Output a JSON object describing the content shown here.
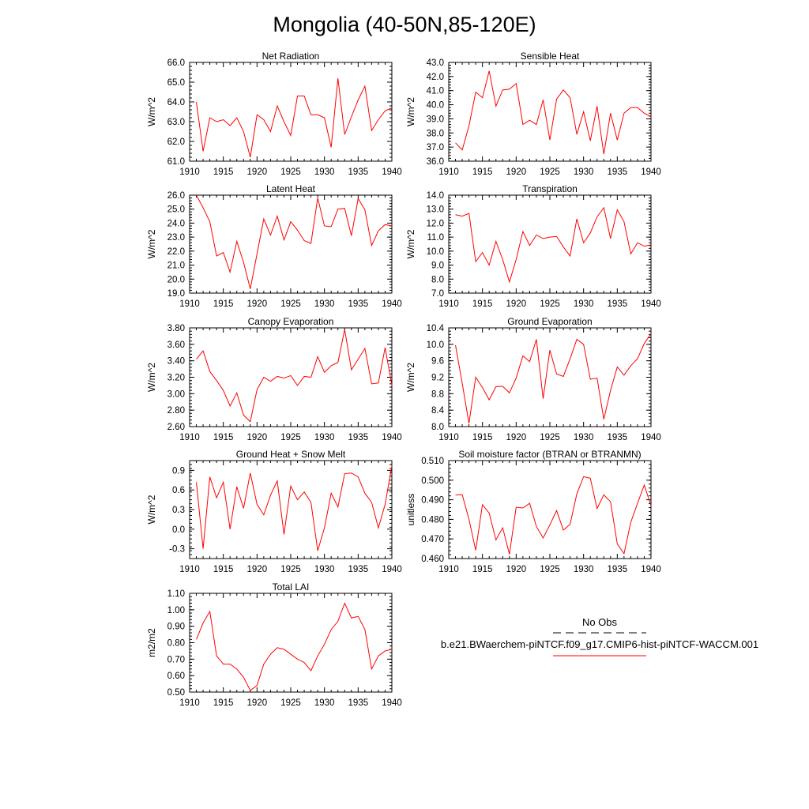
{
  "figure": {
    "title": "Mongolia (40-50N,85-120E)"
  },
  "legend": {
    "obs_label": "No Obs",
    "model_label": "b.e21.BWaerchem-piNTCF.f09_g17.CMIP6-hist-piNTCF-WACCM.001",
    "obs_color": "#000000",
    "model_color": "#ff0000"
  },
  "chart_data": [
    {
      "type": "line",
      "title": "Net Radiation",
      "ylabel": "W/m^2",
      "xlim": [
        1910,
        1940
      ],
      "ylim": [
        61.0,
        66.0
      ],
      "x_ticks": [
        1910,
        1915,
        1920,
        1925,
        1930,
        1935,
        1940
      ],
      "y_ticks": [
        "61.0",
        "62.0",
        "63.0",
        "64.0",
        "65.0",
        "66.0"
      ],
      "series": [
        {
          "color": "#ff0000",
          "x": [
            1911,
            1912,
            1913,
            1914,
            1915,
            1916,
            1917,
            1918,
            1919,
            1920,
            1921,
            1922,
            1923,
            1924,
            1925,
            1926,
            1927,
            1928,
            1929,
            1930,
            1931,
            1932,
            1933,
            1934,
            1935,
            1936,
            1937,
            1938,
            1939,
            1940
          ],
          "y": [
            64.0,
            61.5,
            63.2,
            63.0,
            63.1,
            62.8,
            63.2,
            62.5,
            61.2,
            63.35,
            63.1,
            62.5,
            63.8,
            63.0,
            62.3,
            64.3,
            64.3,
            63.35,
            63.35,
            63.2,
            61.7,
            65.2,
            62.35,
            63.25,
            64.1,
            64.8,
            62.55,
            63.1,
            63.55,
            63.7
          ]
        }
      ]
    },
    {
      "type": "line",
      "title": "Sensible Heat",
      "ylabel": "W/m^2",
      "xlim": [
        1910,
        1940
      ],
      "ylim": [
        36.0,
        43.0
      ],
      "x_ticks": [
        1910,
        1915,
        1920,
        1925,
        1930,
        1935,
        1940
      ],
      "y_ticks": [
        "36.0",
        "37.0",
        "38.0",
        "39.0",
        "40.0",
        "41.0",
        "42.0",
        "43.0"
      ],
      "series": [
        {
          "color": "#ff0000",
          "x": [
            1911,
            1912,
            1913,
            1914,
            1915,
            1916,
            1917,
            1918,
            1919,
            1920,
            1921,
            1922,
            1923,
            1924,
            1925,
            1926,
            1927,
            1928,
            1929,
            1930,
            1931,
            1932,
            1933,
            1934,
            1935,
            1936,
            1937,
            1938,
            1939,
            1940
          ],
          "y": [
            37.3,
            36.8,
            38.5,
            40.9,
            40.5,
            42.4,
            39.9,
            41.05,
            41.1,
            41.5,
            38.6,
            38.9,
            38.6,
            40.35,
            37.5,
            40.4,
            41.05,
            40.5,
            37.9,
            39.5,
            37.45,
            39.9,
            36.5,
            39.4,
            37.5,
            39.4,
            39.8,
            39.8,
            39.4,
            39.15
          ]
        }
      ]
    },
    {
      "type": "line",
      "title": "Latent Heat",
      "ylabel": "W/m^2",
      "xlim": [
        1910,
        1940
      ],
      "ylim": [
        19.0,
        26.0
      ],
      "x_ticks": [
        1910,
        1915,
        1920,
        1925,
        1930,
        1935,
        1940
      ],
      "y_ticks": [
        "19.0",
        "20.0",
        "21.0",
        "22.0",
        "23.0",
        "24.0",
        "25.0",
        "26.0"
      ],
      "series": [
        {
          "color": "#ff0000",
          "x": [
            1911,
            1912,
            1913,
            1914,
            1915,
            1916,
            1917,
            1918,
            1919,
            1920,
            1921,
            1922,
            1923,
            1924,
            1925,
            1926,
            1927,
            1928,
            1929,
            1930,
            1931,
            1932,
            1933,
            1934,
            1935,
            1936,
            1937,
            1938,
            1939,
            1940
          ],
          "y": [
            26.0,
            25.1,
            24.1,
            21.65,
            21.9,
            20.5,
            22.7,
            21.2,
            19.3,
            21.8,
            24.3,
            23.15,
            24.5,
            22.8,
            24.1,
            23.5,
            22.75,
            22.55,
            25.8,
            23.8,
            23.75,
            25.0,
            25.05,
            23.1,
            25.75,
            24.95,
            22.4,
            23.45,
            23.9,
            23.8
          ]
        }
      ]
    },
    {
      "type": "line",
      "title": "Transpiration",
      "ylabel": "W/m^2",
      "xlim": [
        1910,
        1940
      ],
      "ylim": [
        7.0,
        14.0
      ],
      "x_ticks": [
        1910,
        1915,
        1920,
        1925,
        1930,
        1935,
        1940
      ],
      "y_ticks": [
        "7.0",
        "8.0",
        "9.0",
        "10.0",
        "11.0",
        "12.0",
        "13.0",
        "14.0"
      ],
      "series": [
        {
          "color": "#ff0000",
          "x": [
            1911,
            1912,
            1913,
            1914,
            1915,
            1916,
            1917,
            1918,
            1919,
            1920,
            1921,
            1922,
            1923,
            1924,
            1925,
            1926,
            1927,
            1928,
            1929,
            1930,
            1931,
            1932,
            1933,
            1934,
            1935,
            1936,
            1937,
            1938,
            1939,
            1940
          ],
          "y": [
            12.6,
            12.5,
            12.7,
            9.25,
            9.9,
            9.0,
            10.7,
            9.4,
            7.8,
            9.4,
            11.4,
            10.4,
            11.15,
            10.9,
            11.0,
            11.05,
            10.3,
            9.65,
            12.3,
            10.6,
            11.3,
            12.45,
            13.1,
            10.9,
            12.95,
            12.1,
            9.8,
            10.6,
            10.35,
            10.45
          ]
        }
      ]
    },
    {
      "type": "line",
      "title": "Canopy Evaporation",
      "ylabel": "W/m^2",
      "xlim": [
        1910,
        1940
      ],
      "ylim": [
        2.6,
        3.8
      ],
      "x_ticks": [
        1910,
        1915,
        1920,
        1925,
        1930,
        1935,
        1940
      ],
      "y_ticks": [
        "2.60",
        "2.80",
        "3.00",
        "3.20",
        "3.40",
        "3.60",
        "3.80"
      ],
      "series": [
        {
          "color": "#ff0000",
          "x": [
            1911,
            1912,
            1913,
            1914,
            1915,
            1916,
            1917,
            1918,
            1919,
            1920,
            1921,
            1922,
            1923,
            1924,
            1925,
            1926,
            1927,
            1928,
            1929,
            1930,
            1931,
            1932,
            1933,
            1934,
            1935,
            1936,
            1937,
            1938,
            1939,
            1940
          ],
          "y": [
            3.42,
            3.52,
            3.27,
            3.16,
            3.04,
            2.85,
            3.01,
            2.74,
            2.66,
            3.05,
            3.2,
            3.15,
            3.21,
            3.19,
            3.22,
            3.1,
            3.21,
            3.2,
            3.45,
            3.26,
            3.34,
            3.38,
            3.78,
            3.29,
            3.42,
            3.55,
            3.12,
            3.13,
            3.56,
            3.1
          ]
        }
      ]
    },
    {
      "type": "line",
      "title": "Ground Evaporation",
      "ylabel": "W/m^2",
      "xlim": [
        1910,
        1940
      ],
      "ylim": [
        8.0,
        10.4
      ],
      "x_ticks": [
        1910,
        1915,
        1920,
        1925,
        1930,
        1935,
        1940
      ],
      "y_ticks": [
        "8.0",
        "8.4",
        "8.8",
        "9.2",
        "9.6",
        "10.0",
        "10.4"
      ],
      "series": [
        {
          "color": "#ff0000",
          "x": [
            1911,
            1912,
            1913,
            1914,
            1915,
            1916,
            1917,
            1918,
            1919,
            1920,
            1921,
            1922,
            1923,
            1924,
            1925,
            1926,
            1927,
            1928,
            1929,
            1930,
            1931,
            1932,
            1933,
            1934,
            1935,
            1936,
            1937,
            1938,
            1939,
            1940
          ],
          "y": [
            9.98,
            9.05,
            8.08,
            9.2,
            8.95,
            8.65,
            8.97,
            8.98,
            8.82,
            9.18,
            9.72,
            9.58,
            10.12,
            8.68,
            9.86,
            9.28,
            9.22,
            9.65,
            10.12,
            10.0,
            9.15,
            9.18,
            8.18,
            8.88,
            9.45,
            9.25,
            9.48,
            9.65,
            10.02,
            10.26
          ]
        }
      ]
    },
    {
      "type": "line",
      "title": "Ground Heat + Snow Melt",
      "ylabel": "W/m^2",
      "xlim": [
        1910,
        1940
      ],
      "ylim": [
        -0.45,
        1.05
      ],
      "x_ticks": [
        1910,
        1915,
        1920,
        1925,
        1930,
        1935,
        1940
      ],
      "y_ticks": [
        "-0.3",
        "0.0",
        "0.3",
        "0.6",
        "0.9"
      ],
      "series": [
        {
          "color": "#ff0000",
          "x": [
            1911,
            1912,
            1913,
            1914,
            1915,
            1916,
            1917,
            1918,
            1919,
            1920,
            1921,
            1922,
            1923,
            1924,
            1925,
            1926,
            1927,
            1928,
            1929,
            1930,
            1931,
            1932,
            1933,
            1934,
            1935,
            1936,
            1937,
            1938,
            1939,
            1940
          ],
          "y": [
            0.72,
            -0.3,
            0.8,
            0.48,
            0.72,
            0.0,
            0.65,
            0.32,
            0.86,
            0.38,
            0.22,
            0.52,
            0.74,
            -0.08,
            0.66,
            0.45,
            0.57,
            0.41,
            -0.33,
            0.02,
            0.55,
            0.34,
            0.85,
            0.86,
            0.8,
            0.55,
            0.41,
            0.02,
            0.38,
            0.97
          ]
        }
      ]
    },
    {
      "type": "line",
      "title": "Soil moisture factor (BTRAN or BTRANMN)",
      "ylabel": "unitless",
      "xlim": [
        1910,
        1940
      ],
      "ylim": [
        0.46,
        0.51
      ],
      "x_ticks": [
        1910,
        1915,
        1920,
        1925,
        1930,
        1935,
        1940
      ],
      "y_ticks": [
        "0.460",
        "0.470",
        "0.480",
        "0.490",
        "0.500",
        "0.510"
      ],
      "series": [
        {
          "color": "#ff0000",
          "x": [
            1911,
            1912,
            1913,
            1914,
            1915,
            1916,
            1917,
            1918,
            1919,
            1920,
            1921,
            1922,
            1923,
            1924,
            1925,
            1926,
            1927,
            1928,
            1929,
            1930,
            1931,
            1932,
            1933,
            1934,
            1935,
            1936,
            1937,
            1938,
            1939,
            1940
          ],
          "y": [
            0.4925,
            0.4926,
            0.48,
            0.4642,
            0.4875,
            0.4832,
            0.4695,
            0.4757,
            0.4622,
            0.4862,
            0.4858,
            0.4882,
            0.4764,
            0.4705,
            0.4772,
            0.4845,
            0.4745,
            0.4775,
            0.493,
            0.5018,
            0.501,
            0.4855,
            0.4925,
            0.489,
            0.4675,
            0.4625,
            0.4785,
            0.4882,
            0.4975,
            0.487
          ]
        }
      ]
    },
    {
      "type": "line",
      "title": "Total LAI",
      "ylabel": "m2/m2",
      "xlim": [
        1910,
        1940
      ],
      "ylim": [
        0.5,
        1.1
      ],
      "x_ticks": [
        1910,
        1915,
        1920,
        1925,
        1930,
        1935,
        1940
      ],
      "y_ticks": [
        "0.50",
        "0.60",
        "0.70",
        "0.80",
        "0.90",
        "1.00",
        "1.10"
      ],
      "series": [
        {
          "color": "#ff0000",
          "x": [
            1911,
            1912,
            1913,
            1914,
            1915,
            1916,
            1917,
            1918,
            1919,
            1920,
            1921,
            1922,
            1923,
            1924,
            1925,
            1926,
            1927,
            1928,
            1929,
            1930,
            1931,
            1932,
            1933,
            1934,
            1935,
            1936,
            1937,
            1938,
            1939,
            1940
          ],
          "y": [
            0.82,
            0.92,
            0.99,
            0.72,
            0.67,
            0.67,
            0.64,
            0.59,
            0.51,
            0.54,
            0.67,
            0.73,
            0.77,
            0.76,
            0.73,
            0.7,
            0.68,
            0.63,
            0.72,
            0.79,
            0.88,
            0.93,
            1.04,
            0.95,
            0.96,
            0.88,
            0.64,
            0.72,
            0.75,
            0.76
          ]
        }
      ]
    }
  ]
}
